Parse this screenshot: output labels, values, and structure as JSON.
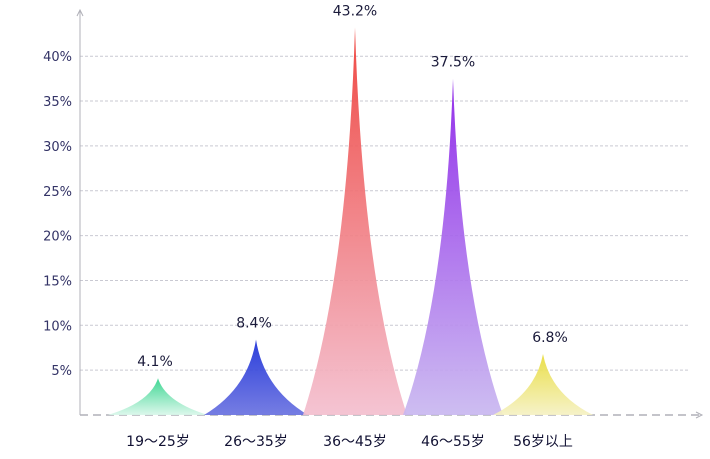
{
  "chart_data": {
    "type": "bar",
    "categories": [
      "19～25岁",
      "26～35岁",
      "36～45岁",
      "46～55岁",
      "56岁以上"
    ],
    "values": [
      4.1,
      8.4,
      43.2,
      37.5,
      6.8
    ],
    "value_labels": [
      "4.1%",
      "8.4%",
      "43.2%",
      "37.5%",
      "6.8%"
    ],
    "y_ticks": [
      {
        "value": 5,
        "label": "5%"
      },
      {
        "value": 10,
        "label": "10%"
      },
      {
        "value": 15,
        "label": "15%"
      },
      {
        "value": 20,
        "label": "20%"
      },
      {
        "value": 25,
        "label": "25%"
      },
      {
        "value": 30,
        "label": "30%"
      },
      {
        "value": 35,
        "label": "35%"
      },
      {
        "value": 40,
        "label": "40%"
      }
    ],
    "ylim": [
      0,
      45
    ],
    "grid": true,
    "colors": [
      {
        "top": "#2ed38a",
        "bottom": "#d9f7ea"
      },
      {
        "top": "#1a2fd8",
        "bottom": "#6a72e0"
      },
      {
        "top": "#ee3a34",
        "bottom": "#f3bfcf"
      },
      {
        "top": "#8a1ee8",
        "bottom": "#c9b8f0"
      },
      {
        "top": "#e8dc3a",
        "bottom": "#f5f1c4"
      }
    ]
  }
}
